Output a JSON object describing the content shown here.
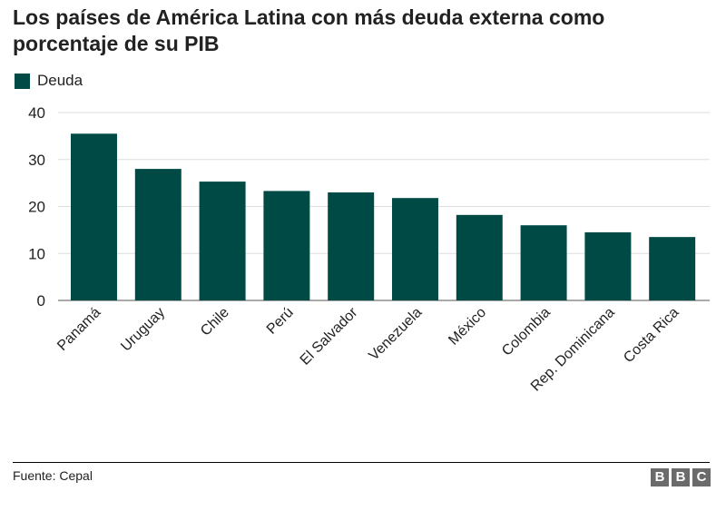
{
  "header": {
    "title": "Los países de América Latina con más deuda externa como porcentaje de su PIB"
  },
  "legend": {
    "label": "Deuda",
    "color": "#004a45"
  },
  "footer": {
    "source": "Fuente: Cepal",
    "logo_letters": [
      "B",
      "B",
      "C"
    ]
  },
  "chart_data": {
    "type": "bar",
    "categories": [
      "Panamá",
      "Uruguay",
      "Chile",
      "Perú",
      "El Salvador",
      "Venezuela",
      "México",
      "Colombia",
      "Rep. Dominicana",
      "Costa Rica"
    ],
    "series": [
      {
        "name": "Deuda",
        "values": [
          35.5,
          28.0,
          25.3,
          23.3,
          23.0,
          21.8,
          18.2,
          16.0,
          14.5,
          13.5
        ]
      }
    ],
    "ylim": [
      0,
      40
    ],
    "yticks": [
      0,
      10,
      20,
      30,
      40
    ],
    "grid": true,
    "legend_position": "top-left",
    "bar_color": "#004a45"
  }
}
